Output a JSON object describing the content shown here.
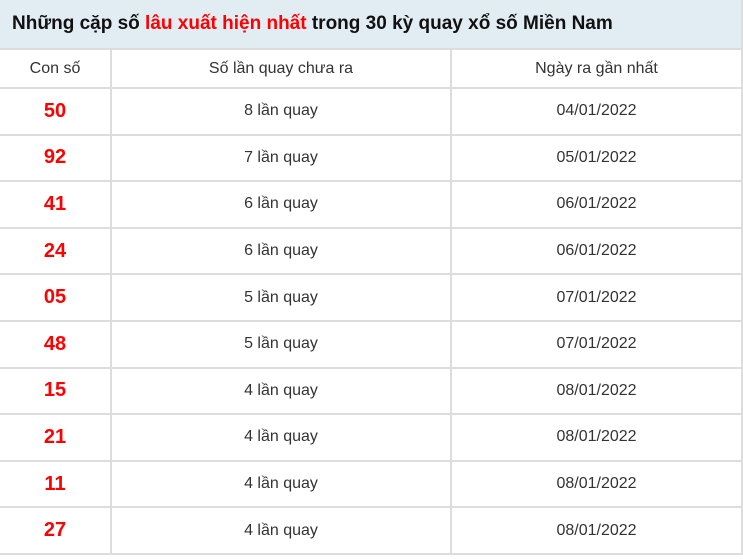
{
  "title": {
    "prefix": "Những cặp số ",
    "highlight": "lâu xuất hiện nhất",
    "suffix": " trong 30 kỳ quay xổ số Miền Nam"
  },
  "columns": [
    "Con số",
    "Số lần quay chưa ra",
    "Ngày ra gần nhất"
  ],
  "rows": [
    {
      "number": "50",
      "count": "8 lần quay",
      "date": "04/01/2022"
    },
    {
      "number": "92",
      "count": "7 lần quay",
      "date": "05/01/2022"
    },
    {
      "number": "41",
      "count": "6 lần quay",
      "date": "06/01/2022"
    },
    {
      "number": "24",
      "count": "6 lần quay",
      "date": "06/01/2022"
    },
    {
      "number": "05",
      "count": "5 lần quay",
      "date": "07/01/2022"
    },
    {
      "number": "48",
      "count": "5 lần quay",
      "date": "07/01/2022"
    },
    {
      "number": "15",
      "count": "4 lần quay",
      "date": "08/01/2022"
    },
    {
      "number": "21",
      "count": "4 lần quay",
      "date": "08/01/2022"
    },
    {
      "number": "11",
      "count": "4 lần quay",
      "date": "08/01/2022"
    },
    {
      "number": "27",
      "count": "4 lần quay",
      "date": "08/01/2022"
    }
  ],
  "colors": {
    "highlight": "#ff0000",
    "title_bg": "#e2ecf3"
  }
}
